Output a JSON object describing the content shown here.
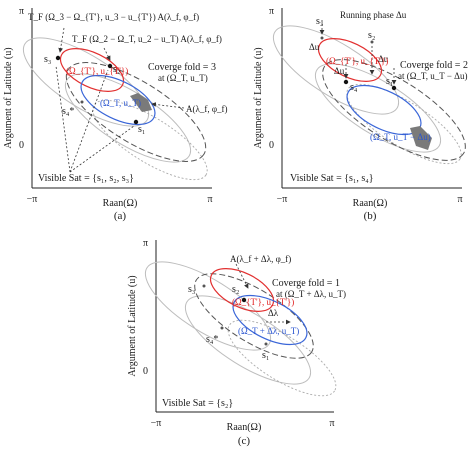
{
  "axes": {
    "ylabel": "Argument of Latitude (u)",
    "xlabel": "Raan(Ω)",
    "neg_pi": "−π",
    "pi": "π",
    "zero": "0"
  },
  "panel_a": {
    "caption": "(a)",
    "formula_top": "T_F (Ω_3 − Ω_{T'}, u_3 − u_{T'}) A(λ_f, φ_f)",
    "formula_second": "T_F (Ω_2 − Ω_T, u_2 − u_T) A(λ_f, φ_f)",
    "s3": "s₃",
    "s2": "s₂",
    "s4": "s₄*",
    "s1": "s₁",
    "red_point": "(Ω_{T'}, u_{T'})",
    "blue_point": "(Ω_T, u_T)",
    "area_label": "A(λ_f, φ_f)",
    "coverage_line1": "Coverge fold = 3",
    "coverage_line2": "at (Ω_T, u_T)",
    "visible": "Visible Sat = {s₁, s₂, s₃}"
  },
  "panel_b": {
    "caption": "(b)",
    "phase_label": "Running phase Δu",
    "du": "Δu",
    "s3": "s₃",
    "s2": "s₂",
    "s4": "s₄",
    "s1": "s₁",
    "red_point": "(Ω_{T'}, u_{T'})",
    "blue_point": "(Ω_T, u_T − Δu)",
    "coverage_line1": "Coverge fold = 2",
    "coverage_line2": "at (Ω_T, u_T − Δu)",
    "visible": "Visible Sat = {s₁, s₄}"
  },
  "panel_c": {
    "caption": "(c)",
    "area_label": "A(λ_f + Δλ, φ_f)",
    "s3": "s₃",
    "s2": "s₂",
    "s4": "s₄*",
    "s1": "s₁",
    "dlambda": "Δλ",
    "red_point": "(Ω_{T'}, u_{T'})",
    "blue_point": "(Ω_T + Δλ, u_T)",
    "coverage_line1": "Coverge fold = 1",
    "coverage_line2": "at (Ω_T + Δλ, u_T)",
    "visible": "Visible Sat = {s₂}"
  }
}
